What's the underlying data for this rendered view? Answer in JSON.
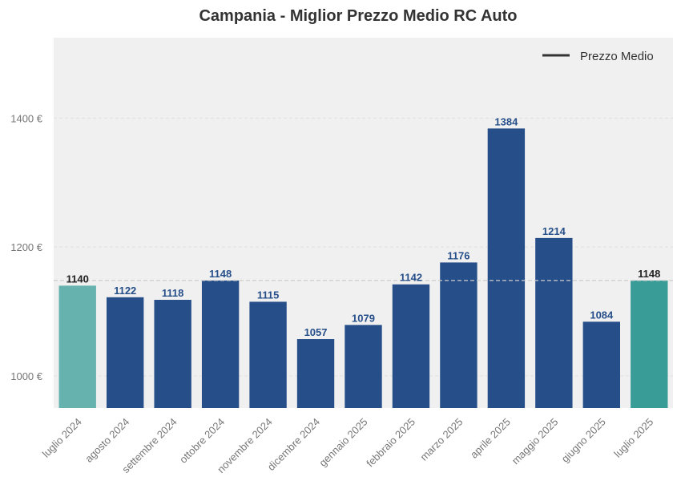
{
  "chart_data": {
    "type": "bar",
    "title": "Campania - Miglior Prezzo Medio RC Auto",
    "xlabel": "",
    "ylabel": "",
    "categories": [
      "luglio 2024",
      "agosto 2024",
      "settembre 2024",
      "ottobre 2024",
      "novembre 2024",
      "dicembre 2024",
      "gennaio 2025",
      "febbraio 2025",
      "marzo 2025",
      "aprile 2025",
      "maggio 2025",
      "giugno 2025",
      "luglio 2025"
    ],
    "values": [
      1140,
      1122,
      1118,
      1148,
      1115,
      1057,
      1079,
      1142,
      1176,
      1384,
      1214,
      1084,
      1148
    ],
    "bar_colors": [
      "#66b2ae",
      "#264f8a",
      "#264f8a",
      "#264f8a",
      "#264f8a",
      "#264f8a",
      "#264f8a",
      "#264f8a",
      "#264f8a",
      "#264f8a",
      "#264f8a",
      "#264f8a",
      "#3a9c96"
    ],
    "label_colors": [
      "#222222",
      "#264f8a",
      "#264f8a",
      "#264f8a",
      "#264f8a",
      "#264f8a",
      "#264f8a",
      "#264f8a",
      "#264f8a",
      "#264f8a",
      "#264f8a",
      "#264f8a",
      "#222222"
    ],
    "ylim": [
      950,
      1525
    ],
    "yticks": [
      1000,
      1200,
      1400
    ],
    "ytick_labels": [
      "1000 €",
      "1200 €",
      "1400 €"
    ],
    "reference_line": {
      "name": "Prezzo Medio",
      "value": 1148,
      "color": "#cccccc"
    },
    "legend": {
      "position": "top-right",
      "entries": [
        "Prezzo Medio"
      ],
      "swatch_color": "#333333"
    },
    "grid": true,
    "background": "#f0f0f0"
  }
}
